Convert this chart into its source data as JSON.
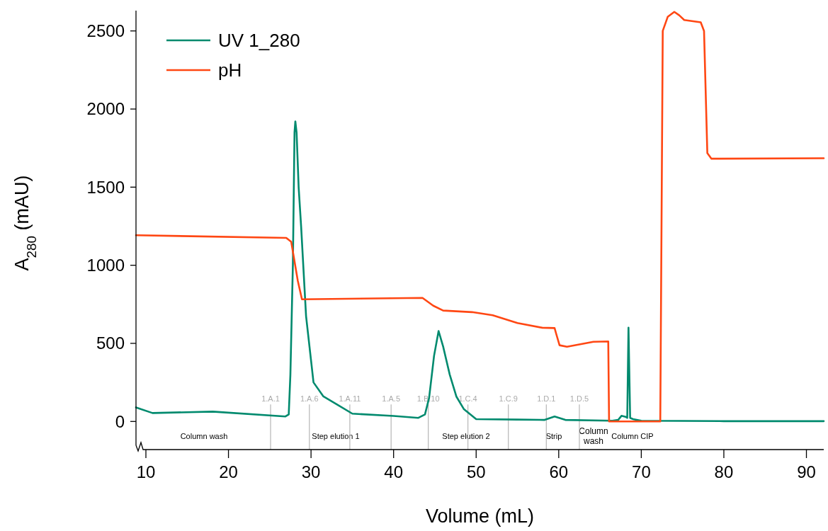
{
  "chart_data": {
    "type": "line",
    "xlabel": "Volume (mL)",
    "ylabel": "A$_{280}$ (mAU)",
    "xlim": [
      8.8,
      92.1
    ],
    "xticks": [
      10,
      20,
      30,
      40,
      50,
      60,
      70,
      80,
      90
    ],
    "ylim": [
      -180,
      2630
    ],
    "yticks": [
      0,
      500,
      1000,
      1500,
      2000,
      2500
    ],
    "grid": false,
    "legend": "top left",
    "marker": "none",
    "line_style": "solid",
    "series": [
      {
        "name": "UV 1_280",
        "color": "#008a6e",
        "x": [
          8.8,
          10.8,
          18.1,
          26.9,
          27.3,
          27.5,
          27.8,
          28.0,
          28.1,
          28.25,
          28.5,
          28.8,
          29.4,
          30.3,
          31.5,
          33.3,
          35,
          40,
          43,
          43.8,
          44.3,
          44.9,
          45.45,
          46.0,
          46.8,
          47.6,
          48.5,
          50,
          55,
          58.3,
          59.5,
          60.8,
          66.5,
          67.2,
          67.6,
          68.1,
          68.3,
          68.45,
          68.65,
          69.0,
          70,
          80,
          92.1
        ],
        "values": [
          90,
          54,
          63,
          32,
          45,
          300,
          1000,
          1850,
          1921,
          1850,
          1500,
          1248,
          674,
          250,
          160,
          104,
          50,
          35,
          23,
          45,
          150,
          420,
          579,
          480,
          300,
          160,
          80,
          15,
          12,
          10,
          32,
          10,
          5,
          10,
          36,
          30,
          23,
          601,
          23,
          15,
          5,
          2,
          2
        ]
      },
      {
        "name": "pH",
        "color": "#ff4713",
        "x": [
          8.8,
          27,
          27.6,
          28.4,
          28.9,
          43.5,
          44.8,
          46,
          49.5,
          52,
          55,
          58,
          59.5,
          59.7,
          60.1,
          61,
          64.2,
          66.0,
          66.1,
          72.3,
          72.6,
          73.2,
          74.0,
          74.6,
          75.2,
          77.2,
          77.6,
          78.0,
          78.5,
          92.1
        ],
        "values": [
          1192,
          1175,
          1150,
          900,
          782,
          791,
          741,
          710,
          700,
          680,
          630,
          600,
          598,
          560,
          488,
          478,
          510,
          512,
          0,
          0,
          2500,
          2590,
          2622,
          2600,
          2570,
          2555,
          2500,
          1718,
          1682,
          1685
        ]
      }
    ],
    "ref_lines": [
      {
        "axis": "x",
        "value": 25.1,
        "label": "1.A.1",
        "color": "#bbbbbb"
      },
      {
        "axis": "x",
        "value": 29.8,
        "label": "1.A.6",
        "color": "#bbbbbb"
      },
      {
        "axis": "x",
        "value": 34.7,
        "label": "1.A.11",
        "color": "#bbbbbb"
      },
      {
        "axis": "x",
        "value": 39.7,
        "label": "1.A.5",
        "color": "#bbbbbb"
      },
      {
        "axis": "x",
        "value": 44.2,
        "label": "1.B.10",
        "color": "#bbbbbb"
      },
      {
        "axis": "x",
        "value": 49.0,
        "label": "1.C.4",
        "color": "#bbbbbb"
      },
      {
        "axis": "x",
        "value": 53.9,
        "label": "1.C.9",
        "color": "#bbbbbb"
      },
      {
        "axis": "x",
        "value": 58.5,
        "label": "1.D.1",
        "color": "#bbbbbb"
      },
      {
        "axis": "x",
        "value": 62.5,
        "label": "1.D.5",
        "color": "#bbbbbb"
      }
    ],
    "annotations": [
      "Column wash",
      "Step elution 1",
      "Step elution 2",
      "Strip",
      "Column\nwash",
      "Column CIP"
    ]
  }
}
